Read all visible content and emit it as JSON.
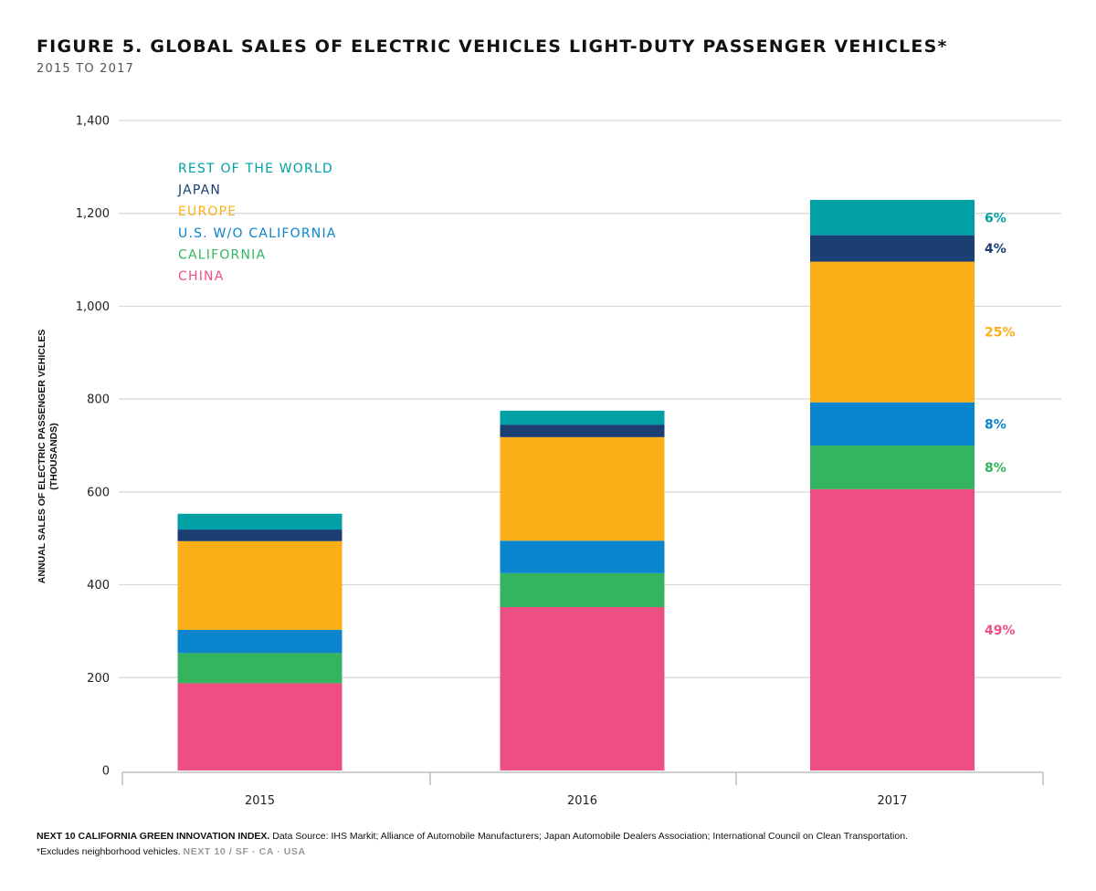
{
  "title": "FIGURE 5. GLOBAL SALES OF ELECTRIC VEHICLES LIGHT-DUTY PASSENGER VEHICLES*",
  "subtitle": "2015 TO 2017",
  "footer": {
    "source_bold": "NEXT 10 CALIFORNIA GREEN INNOVATION INDEX.",
    "source_text": "Data Source: IHS Markit; Alliance of Automobile Manufacturers; Japan Automobile Dealers Association; International Council on Clean Transportation.",
    "note": "*Excludes neighborhood vehicles.",
    "brand": "NEXT 10 / SF · CA · USA"
  },
  "chart_data": {
    "type": "bar",
    "stacked": true,
    "title": "FIGURE 5. GLOBAL SALES OF ELECTRIC VEHICLES LIGHT-DUTY PASSENGER VEHICLES*",
    "subtitle": "2015 TO 2017",
    "ylabel": "ANNUAL SALES OF ELECTRIC PASSENGER VEHICLES",
    "ylabel_unit": "(THOUSANDS)",
    "xlabel": "",
    "ylim": [
      0,
      1400
    ],
    "yticks": [
      0,
      200,
      400,
      600,
      800,
      1000,
      1200,
      1400
    ],
    "ytick_labels": [
      "0",
      "200",
      "400",
      "600",
      "800",
      "1,000",
      "1,200",
      "1,400"
    ],
    "grid": true,
    "legend_position": "top-left",
    "categories": [
      "2015",
      "2016",
      "2017"
    ],
    "series": [
      {
        "name": "CHINA",
        "color": "#ee4f82",
        "values": [
          188,
          352,
          606
        ]
      },
      {
        "name": "CALIFORNIA",
        "color": "#35b45f",
        "values": [
          65,
          73,
          94
        ]
      },
      {
        "name": "U.S. W/O CALIFORNIA",
        "color": "#0984cd",
        "values": [
          50,
          70,
          93
        ]
      },
      {
        "name": "EUROPE",
        "color": "#fbae17",
        "values": [
          191,
          223,
          303
        ]
      },
      {
        "name": "JAPAN",
        "color": "#1b3f72",
        "values": [
          25,
          27,
          57
        ]
      },
      {
        "name": "REST OF THE WORLD",
        "color": "#00a0a4",
        "values": [
          34,
          30,
          76
        ]
      }
    ],
    "annotations_2017": [
      {
        "series": "REST OF THE WORLD",
        "label": "6%"
      },
      {
        "series": "JAPAN",
        "label": "4%"
      },
      {
        "series": "EUROPE",
        "label": "25%"
      },
      {
        "series": "U.S. W/O CALIFORNIA",
        "label": "8%"
      },
      {
        "series": "CALIFORNIA",
        "label": "8%"
      },
      {
        "series": "CHINA",
        "label": "49%"
      }
    ]
  }
}
